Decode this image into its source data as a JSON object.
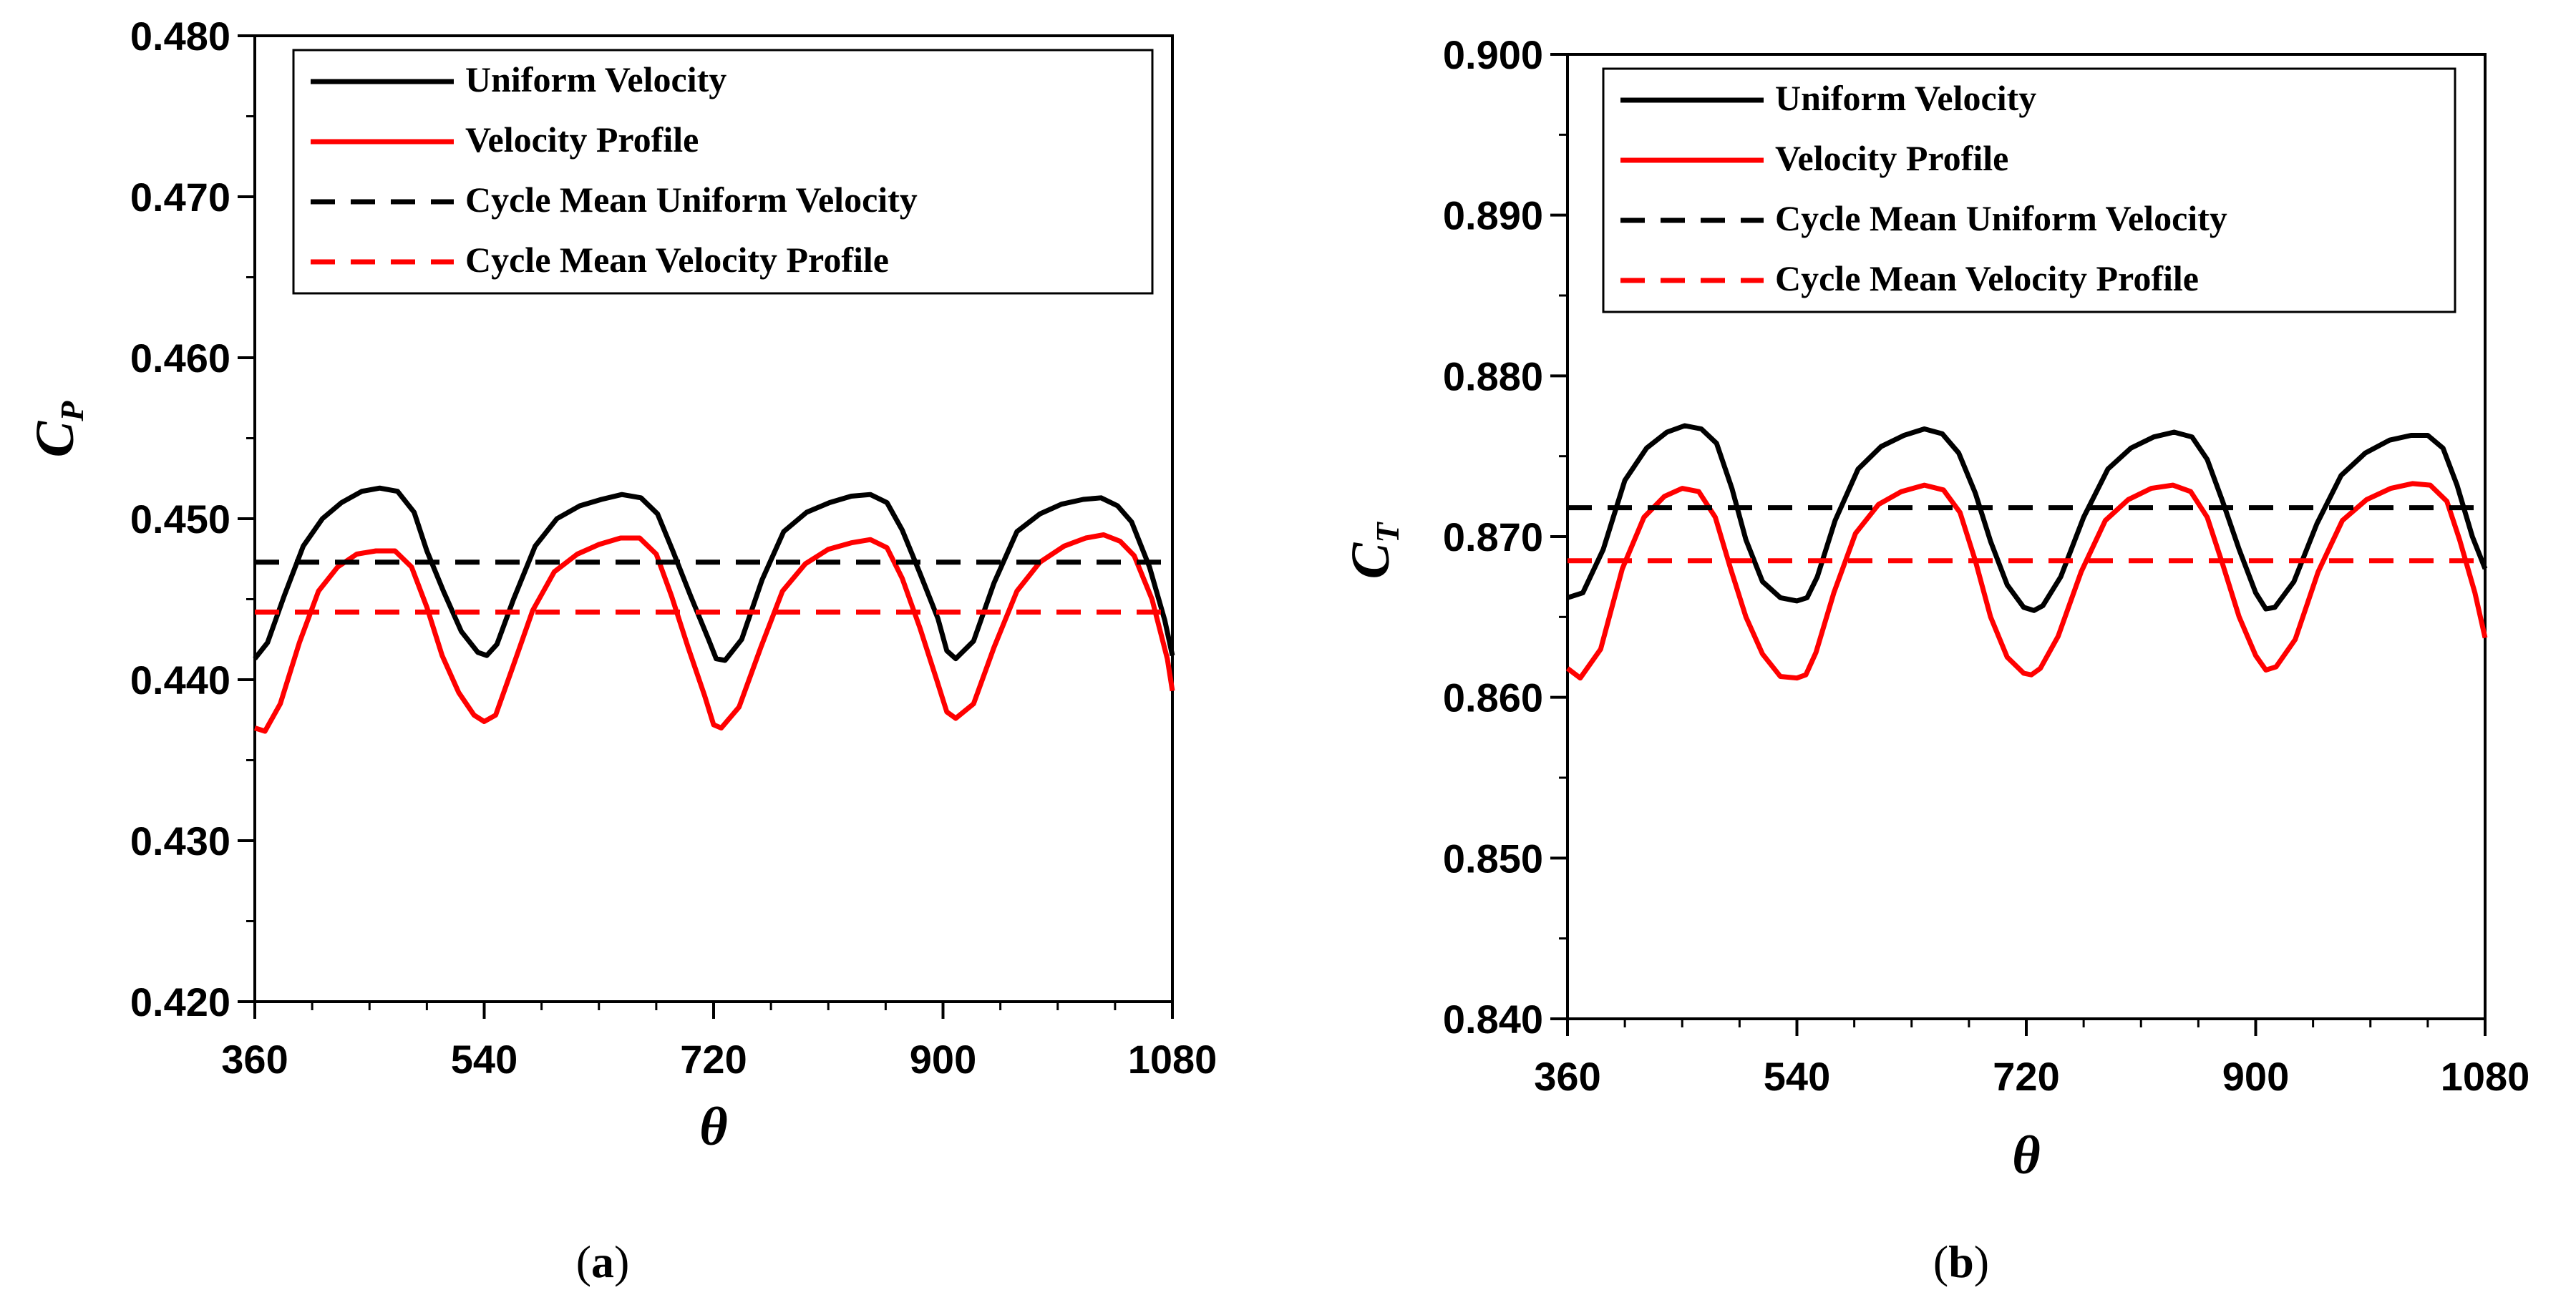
{
  "chart_data": [
    {
      "type": "line",
      "caption_open": "(",
      "caption_letter": "a",
      "caption_close": ")",
      "xlabel": "θ",
      "ylabel_main": "C",
      "ylabel_sub": "P",
      "xlim": [
        360,
        1080
      ],
      "ylim": [
        0.42,
        0.48
      ],
      "x_ticks": [
        360,
        540,
        720,
        900,
        1080
      ],
      "x_tick_labels": [
        "360",
        "540",
        "720",
        "900",
        "1080"
      ],
      "y_ticks": [
        0.42,
        0.43,
        0.44,
        0.45,
        0.46,
        0.47,
        0.48
      ],
      "y_tick_labels": [
        "0.420",
        "0.430",
        "0.440",
        "0.450",
        "0.460",
        "0.470",
        "0.480"
      ],
      "legend_position": "top",
      "series": [
        {
          "name": "Uniform Velocity",
          "color": "#000000",
          "style": "solid",
          "x": [
            360,
            370,
            383,
            398,
            413,
            428,
            444,
            458,
            472,
            485,
            495,
            508,
            522,
            535,
            542,
            550,
            563,
            580,
            597,
            615,
            632,
            648,
            663,
            676,
            688,
            702,
            716,
            722,
            729,
            742,
            758,
            775,
            793,
            811,
            828,
            843,
            856,
            868,
            882,
            896,
            903,
            910,
            924,
            940,
            958,
            976,
            993,
            1010,
            1024,
            1037,
            1048,
            1062,
            1074,
            1080
          ],
          "values": [
            0.4413,
            0.4423,
            0.4452,
            0.4483,
            0.45,
            0.451,
            0.4517,
            0.4519,
            0.4517,
            0.4504,
            0.448,
            0.4455,
            0.443,
            0.4417,
            0.4415,
            0.4422,
            0.445,
            0.4483,
            0.45,
            0.4508,
            0.4512,
            0.4515,
            0.4513,
            0.4503,
            0.448,
            0.4452,
            0.4425,
            0.4413,
            0.4412,
            0.4425,
            0.4462,
            0.4492,
            0.4504,
            0.451,
            0.4514,
            0.4515,
            0.451,
            0.4493,
            0.4466,
            0.4438,
            0.4418,
            0.4413,
            0.4424,
            0.446,
            0.4492,
            0.4503,
            0.4509,
            0.4512,
            0.4513,
            0.4508,
            0.4498,
            0.447,
            0.4437,
            0.4415
          ]
        },
        {
          "name": "Velocity Profile",
          "color": "#ff0000",
          "style": "solid",
          "x": [
            360,
            368,
            380,
            395,
            410,
            425,
            440,
            455,
            470,
            483,
            495,
            507,
            520,
            532,
            540,
            549,
            562,
            578,
            595,
            613,
            630,
            647,
            662,
            675,
            687,
            700,
            713,
            720,
            726,
            740,
            757,
            774,
            792,
            810,
            828,
            843,
            856,
            868,
            882,
            895,
            903,
            910,
            924,
            940,
            958,
            976,
            995,
            1012,
            1026,
            1039,
            1050,
            1064,
            1076,
            1080
          ],
          "values": [
            0.437,
            0.4368,
            0.4385,
            0.4423,
            0.4455,
            0.447,
            0.4478,
            0.448,
            0.448,
            0.447,
            0.4445,
            0.4415,
            0.4392,
            0.4378,
            0.4374,
            0.4378,
            0.4407,
            0.4443,
            0.4467,
            0.4478,
            0.4484,
            0.4488,
            0.4488,
            0.4478,
            0.4452,
            0.442,
            0.439,
            0.4372,
            0.437,
            0.4383,
            0.442,
            0.4455,
            0.4472,
            0.4481,
            0.4485,
            0.4487,
            0.4482,
            0.4463,
            0.4432,
            0.44,
            0.438,
            0.4376,
            0.4385,
            0.442,
            0.4455,
            0.4473,
            0.4483,
            0.4488,
            0.449,
            0.4486,
            0.4477,
            0.445,
            0.4413,
            0.4393
          ]
        },
        {
          "name": "Cycle Mean Uniform Velocity",
          "color": "#000000",
          "style": "dashed",
          "x": [
            360,
            1080
          ],
          "values": [
            0.4473,
            0.4473
          ]
        },
        {
          "name": "Cycle Mean Velocity Profile",
          "color": "#ff0000",
          "style": "dashed",
          "x": [
            360,
            1080
          ],
          "values": [
            0.4442,
            0.4442
          ]
        }
      ]
    },
    {
      "type": "line",
      "caption_open": "(",
      "caption_letter": "b",
      "caption_close": ")",
      "xlabel": "θ",
      "ylabel_main": "C",
      "ylabel_sub": "T",
      "xlim": [
        360,
        1080
      ],
      "ylim": [
        0.84,
        0.9
      ],
      "x_ticks": [
        360,
        540,
        720,
        900,
        1080
      ],
      "x_tick_labels": [
        "360",
        "540",
        "720",
        "900",
        "1080"
      ],
      "y_ticks": [
        0.84,
        0.85,
        0.86,
        0.87,
        0.88,
        0.89,
        0.9
      ],
      "y_tick_labels": [
        "0.840",
        "0.850",
        "0.860",
        "0.870",
        "0.880",
        "0.890",
        "0.900"
      ],
      "legend_position": "top",
      "series": [
        {
          "name": "Uniform Velocity",
          "color": "#000000",
          "style": "solid",
          "x": [
            360,
            372,
            388,
            405,
            422,
            438,
            452,
            465,
            477,
            489,
            500,
            513,
            527,
            540,
            548,
            556,
            570,
            588,
            606,
            624,
            640,
            654,
            667,
            680,
            692,
            705,
            718,
            726,
            733,
            747,
            765,
            784,
            802,
            820,
            836,
            850,
            862,
            874,
            887,
            900,
            908,
            915,
            930,
            948,
            967,
            986,
            1005,
            1022,
            1035,
            1047,
            1058,
            1070,
            1080
          ],
          "values": [
            0.8662,
            0.8665,
            0.8692,
            0.8735,
            0.8755,
            0.8765,
            0.8769,
            0.8767,
            0.8758,
            0.873,
            0.8698,
            0.8672,
            0.8662,
            0.866,
            0.8662,
            0.8675,
            0.871,
            0.8742,
            0.8756,
            0.8763,
            0.8767,
            0.8764,
            0.8752,
            0.8727,
            0.8697,
            0.867,
            0.8656,
            0.8654,
            0.8657,
            0.8675,
            0.8712,
            0.8742,
            0.8755,
            0.8762,
            0.8765,
            0.8762,
            0.8748,
            0.8722,
            0.8692,
            0.8665,
            0.8655,
            0.8656,
            0.8672,
            0.8708,
            0.8738,
            0.8752,
            0.876,
            0.8763,
            0.8763,
            0.8755,
            0.8732,
            0.87,
            0.868
          ]
        },
        {
          "name": "Velocity Profile",
          "color": "#ff0000",
          "style": "solid",
          "x": [
            360,
            370,
            386,
            403,
            420,
            436,
            450,
            463,
            476,
            488,
            500,
            513,
            527,
            540,
            547,
            555,
            569,
            586,
            604,
            622,
            640,
            655,
            668,
            680,
            692,
            705,
            718,
            724,
            731,
            745,
            763,
            782,
            800,
            818,
            835,
            849,
            862,
            874,
            887,
            900,
            908,
            916,
            931,
            949,
            968,
            987,
            1006,
            1023,
            1037,
            1050,
            1060,
            1072,
            1080
          ],
          "values": [
            0.8618,
            0.8612,
            0.863,
            0.868,
            0.8712,
            0.8725,
            0.873,
            0.8728,
            0.8712,
            0.868,
            0.865,
            0.8627,
            0.8613,
            0.8612,
            0.8614,
            0.8628,
            0.8665,
            0.8702,
            0.872,
            0.8728,
            0.8732,
            0.8729,
            0.8715,
            0.8685,
            0.865,
            0.8625,
            0.8615,
            0.8614,
            0.8618,
            0.8638,
            0.8678,
            0.871,
            0.8723,
            0.873,
            0.8732,
            0.8728,
            0.8712,
            0.8683,
            0.865,
            0.8626,
            0.8617,
            0.8619,
            0.8636,
            0.8678,
            0.871,
            0.8723,
            0.873,
            0.8733,
            0.8732,
            0.8722,
            0.8698,
            0.8665,
            0.8637
          ]
        },
        {
          "name": "Cycle Mean Uniform Velocity",
          "color": "#000000",
          "style": "dashed",
          "x": [
            360,
            1080
          ],
          "values": [
            0.8718,
            0.8718
          ]
        },
        {
          "name": "Cycle Mean Velocity Profile",
          "color": "#ff0000",
          "style": "dashed",
          "x": [
            360,
            1080
          ],
          "values": [
            0.8685,
            0.8685
          ]
        }
      ]
    }
  ]
}
